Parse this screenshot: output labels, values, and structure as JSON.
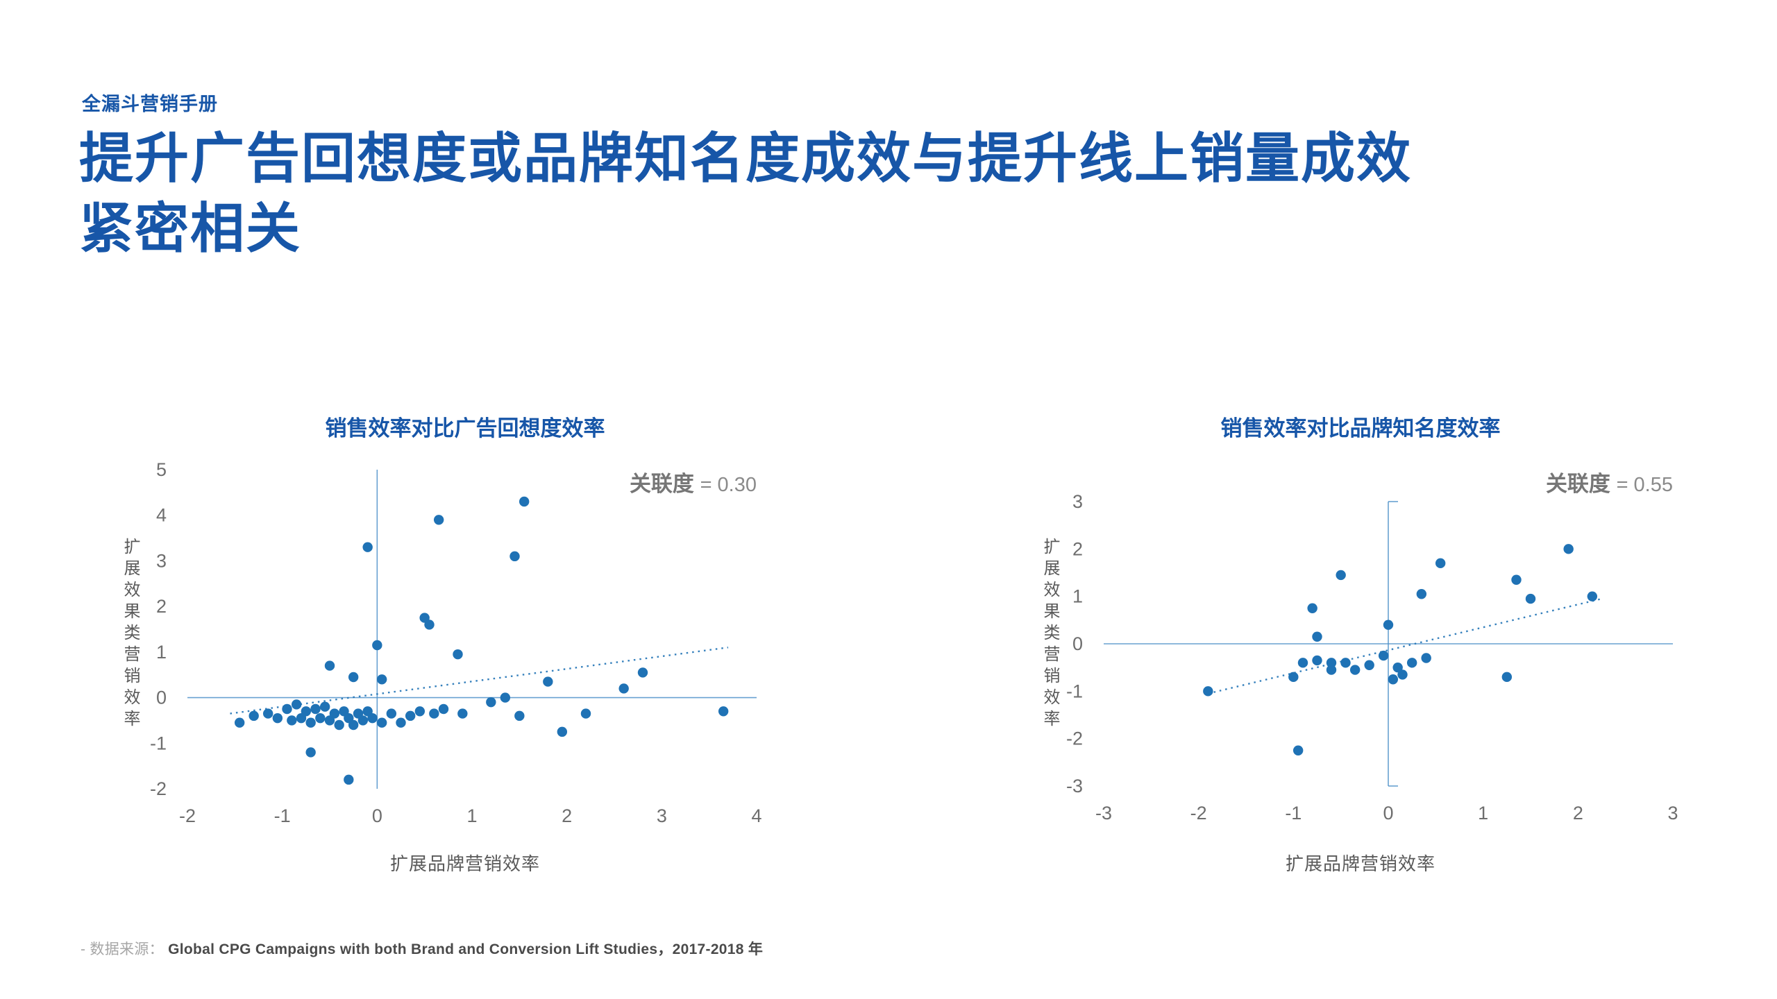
{
  "page": {
    "eyebrow": "全漏斗营销手册",
    "title_line1": "提升广告回想度或品牌知名度成效与提升线上销量成效",
    "title_line2": "紧密相关",
    "footnote": {
      "prefix": "- 数据来源：",
      "source": "Global CPG Campaigns with both Brand and Conversion Lift Studies，2017-2018 年"
    }
  },
  "colors": {
    "heading_blue": "#1756a8",
    "point_blue": "#1f72b5",
    "axis_blue": "#4e91c9",
    "tick_gray": "#6e6e6e",
    "corr_gray": "#7f7f7f"
  },
  "chart_data": [
    {
      "type": "scatter",
      "title": "销售效率对比广告回想度效率",
      "correlation_label": "关联度",
      "correlation_value": "= 0.30",
      "xlabel": "扩展品牌营销效率",
      "ylabel": "扩展效果类营销效率",
      "xlim": [
        -2,
        4
      ],
      "ylim": [
        -2,
        5
      ],
      "xticks": [
        -2,
        -1,
        0,
        1,
        2,
        3,
        4
      ],
      "yticks": [
        5,
        4,
        3,
        2,
        1,
        0,
        -1,
        -2
      ],
      "axis_caps": false,
      "legend": "none",
      "grid": false,
      "trend": [
        [
          -1.55,
          -0.35
        ],
        [
          3.7,
          1.1
        ]
      ],
      "points": [
        [
          1.55,
          4.3
        ],
        [
          0.65,
          3.9
        ],
        [
          -0.1,
          3.3
        ],
        [
          1.45,
          3.1
        ],
        [
          0.5,
          1.75
        ],
        [
          0.55,
          1.6
        ],
        [
          0,
          1.15
        ],
        [
          0.85,
          0.95
        ],
        [
          -0.5,
          0.7
        ],
        [
          -0.25,
          0.45
        ],
        [
          0.05,
          0.4
        ],
        [
          1.8,
          0.35
        ],
        [
          2.8,
          0.55
        ],
        [
          2.6,
          0.2
        ],
        [
          1.35,
          0.0
        ],
        [
          1.2,
          -0.1
        ],
        [
          -1.45,
          -0.55
        ],
        [
          -1.3,
          -0.4
        ],
        [
          -1.15,
          -0.35
        ],
        [
          -1.05,
          -0.45
        ],
        [
          -0.95,
          -0.25
        ],
        [
          -0.9,
          -0.5
        ],
        [
          -0.85,
          -0.15
        ],
        [
          -0.8,
          -0.45
        ],
        [
          -0.75,
          -0.3
        ],
        [
          -0.7,
          -0.55
        ],
        [
          -0.65,
          -0.25
        ],
        [
          -0.6,
          -0.45
        ],
        [
          -0.55,
          -0.2
        ],
        [
          -0.5,
          -0.5
        ],
        [
          -0.45,
          -0.35
        ],
        [
          -0.4,
          -0.6
        ],
        [
          -0.35,
          -0.3
        ],
        [
          -0.3,
          -0.45
        ],
        [
          -0.25,
          -0.6
        ],
        [
          -0.2,
          -0.35
        ],
        [
          -0.15,
          -0.5
        ],
        [
          -0.1,
          -0.3
        ],
        [
          -0.05,
          -0.45
        ],
        [
          0.05,
          -0.55
        ],
        [
          0.15,
          -0.35
        ],
        [
          0.25,
          -0.55
        ],
        [
          0.35,
          -0.4
        ],
        [
          -0.7,
          -1.2
        ],
        [
          -0.3,
          -1.8
        ],
        [
          0.45,
          -0.3
        ],
        [
          0.6,
          -0.35
        ],
        [
          0.7,
          -0.25
        ],
        [
          0.9,
          -0.35
        ],
        [
          1.5,
          -0.4
        ],
        [
          1.95,
          -0.75
        ],
        [
          2.2,
          -0.35
        ],
        [
          3.65,
          -0.3
        ]
      ]
    },
    {
      "type": "scatter",
      "title": "销售效率对比品牌知名度效率",
      "correlation_label": "关联度",
      "correlation_value": "= 0.55",
      "xlabel": "扩展品牌营销效率",
      "ylabel": "扩展效果类营销效率",
      "xlim": [
        -3,
        3
      ],
      "ylim": [
        -3,
        3
      ],
      "xticks": [
        -3,
        -2,
        -1,
        0,
        1,
        2,
        3
      ],
      "yticks": [
        3,
        2,
        1,
        0,
        -1,
        -2,
        -3
      ],
      "axis_caps": true,
      "legend": "none",
      "grid": false,
      "trend": [
        [
          -1.9,
          -1.05
        ],
        [
          2.25,
          0.95
        ]
      ],
      "points": [
        [
          1.9,
          2.0
        ],
        [
          0.55,
          1.7
        ],
        [
          -0.5,
          1.45
        ],
        [
          1.35,
          1.35
        ],
        [
          0.35,
          1.05
        ],
        [
          2.15,
          1.0
        ],
        [
          1.5,
          0.95
        ],
        [
          -0.8,
          0.75
        ],
        [
          0.0,
          0.4
        ],
        [
          -0.75,
          0.15
        ],
        [
          -0.05,
          -0.25
        ],
        [
          -0.9,
          -0.4
        ],
        [
          -0.75,
          -0.35
        ],
        [
          -0.6,
          -0.4
        ],
        [
          -0.6,
          -0.55
        ],
        [
          -0.45,
          -0.4
        ],
        [
          -0.35,
          -0.55
        ],
        [
          -0.2,
          -0.45
        ],
        [
          0.05,
          -0.75
        ],
        [
          0.1,
          -0.5
        ],
        [
          0.15,
          -0.65
        ],
        [
          0.25,
          -0.4
        ],
        [
          0.4,
          -0.3
        ],
        [
          -1.0,
          -0.7
        ],
        [
          -1.9,
          -1.0
        ],
        [
          1.25,
          -0.7
        ],
        [
          -0.95,
          -2.25
        ]
      ]
    }
  ]
}
